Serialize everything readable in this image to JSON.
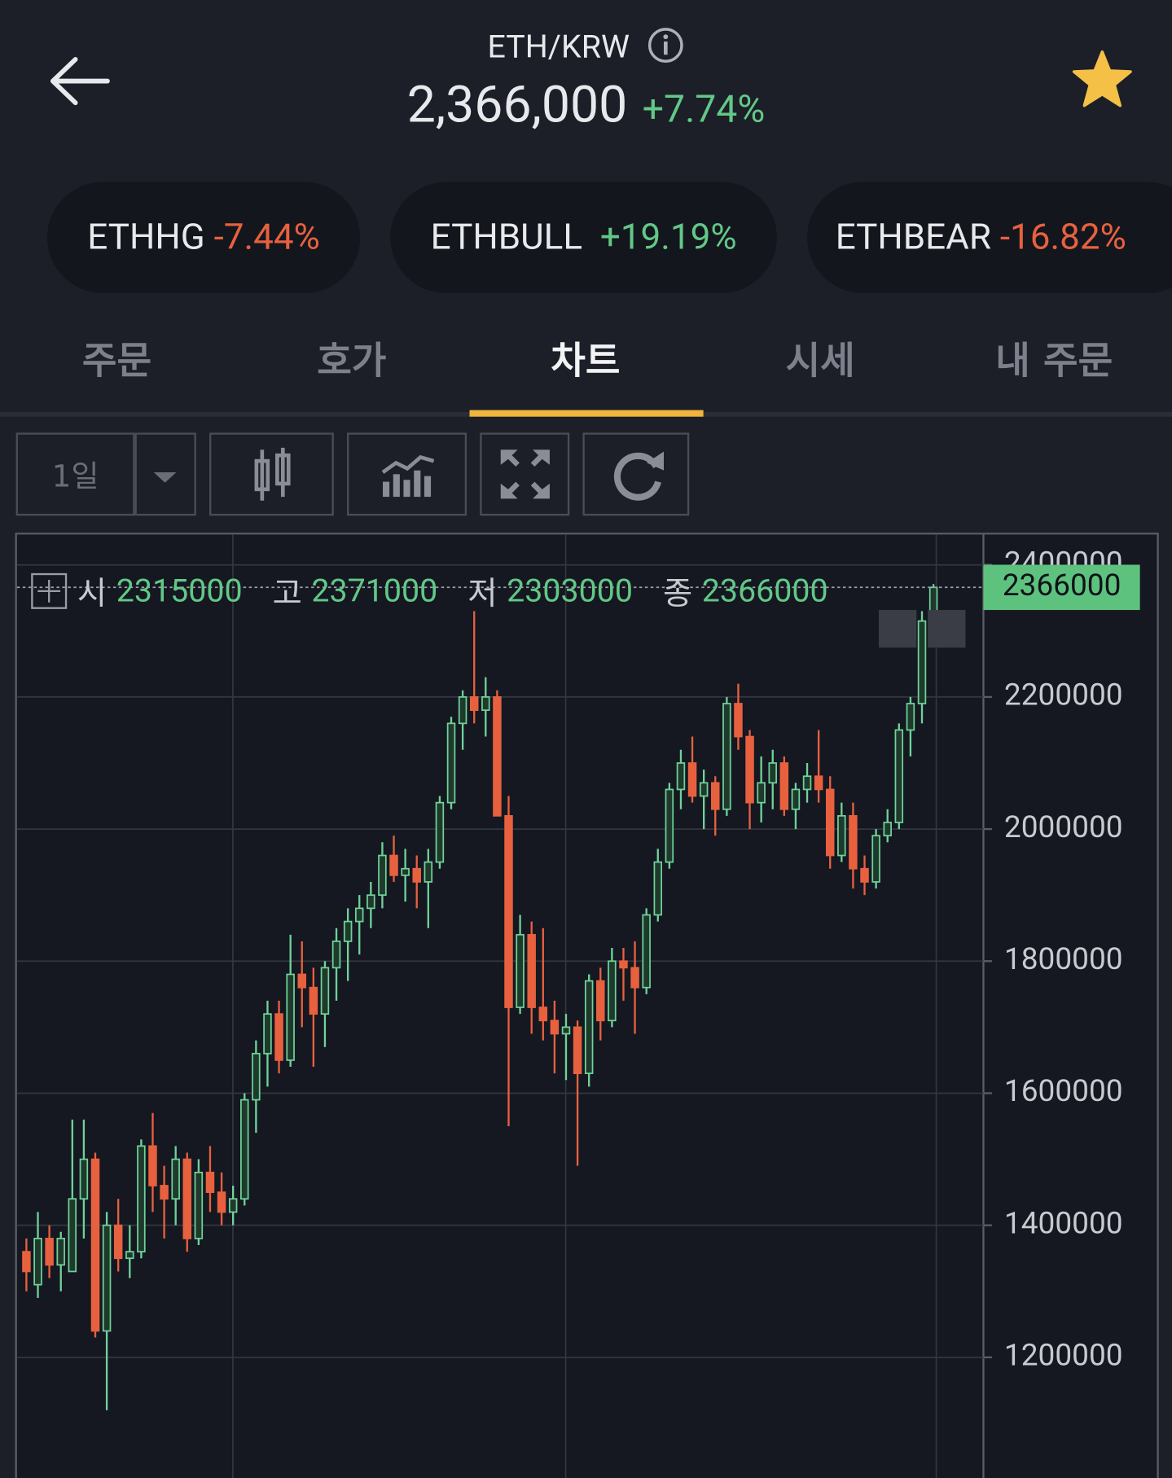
{
  "header": {
    "pair": "ETH/KRW",
    "price": "2,366,000",
    "change": "+7.74%"
  },
  "pills": [
    {
      "name": "ETHHG",
      "change": "-7.44%"
    },
    {
      "name": "ETHBULL",
      "change": "+19.19%"
    },
    {
      "name": "ETHBEAR",
      "change": "-16.82%"
    }
  ],
  "tabs": [
    "주문",
    "호가",
    "차트",
    "시세",
    "내 주문"
  ],
  "toolbar": {
    "interval": "1일"
  },
  "ohlc_labels": [
    "시",
    "고",
    "저",
    "종"
  ],
  "chart_data": {
    "type": "candlestick",
    "up_color": "#6fd39a",
    "down_color": "#e8613f",
    "grid": true,
    "ylim": [
      1017000,
      2446000
    ],
    "yticks": [
      1200000,
      1400000,
      1600000,
      1800000,
      2000000,
      2200000,
      2400000
    ],
    "candles": [
      [
        1360000,
        1380000,
        1300000,
        1330000
      ],
      [
        1310000,
        1420000,
        1290000,
        1380000
      ],
      [
        1380000,
        1400000,
        1320000,
        1340000
      ],
      [
        1340000,
        1390000,
        1300000,
        1380000
      ],
      [
        1330000,
        1560000,
        1330000,
        1440000
      ],
      [
        1440000,
        1560000,
        1380000,
        1500000
      ],
      [
        1500000,
        1510000,
        1230000,
        1240000
      ],
      [
        1240000,
        1420000,
        1120000,
        1400000
      ],
      [
        1400000,
        1440000,
        1330000,
        1350000
      ],
      [
        1350000,
        1400000,
        1320000,
        1360000
      ],
      [
        1360000,
        1530000,
        1350000,
        1520000
      ],
      [
        1520000,
        1570000,
        1420000,
        1460000
      ],
      [
        1460000,
        1490000,
        1380000,
        1440000
      ],
      [
        1440000,
        1520000,
        1400000,
        1500000
      ],
      [
        1500000,
        1510000,
        1360000,
        1380000
      ],
      [
        1380000,
        1500000,
        1370000,
        1480000
      ],
      [
        1480000,
        1520000,
        1420000,
        1450000
      ],
      [
        1450000,
        1480000,
        1400000,
        1420000
      ],
      [
        1420000,
        1460000,
        1400000,
        1440000
      ],
      [
        1440000,
        1600000,
        1430000,
        1590000
      ],
      [
        1590000,
        1680000,
        1540000,
        1660000
      ],
      [
        1660000,
        1740000,
        1610000,
        1720000
      ],
      [
        1720000,
        1740000,
        1630000,
        1650000
      ],
      [
        1650000,
        1840000,
        1640000,
        1780000
      ],
      [
        1780000,
        1830000,
        1700000,
        1760000
      ],
      [
        1760000,
        1790000,
        1640000,
        1720000
      ],
      [
        1720000,
        1800000,
        1670000,
        1790000
      ],
      [
        1790000,
        1850000,
        1740000,
        1830000
      ],
      [
        1830000,
        1880000,
        1770000,
        1860000
      ],
      [
        1860000,
        1900000,
        1810000,
        1880000
      ],
      [
        1880000,
        1920000,
        1850000,
        1900000
      ],
      [
        1900000,
        1980000,
        1880000,
        1960000
      ],
      [
        1960000,
        1990000,
        1920000,
        1930000
      ],
      [
        1930000,
        1970000,
        1890000,
        1940000
      ],
      [
        1940000,
        1960000,
        1880000,
        1920000
      ],
      [
        1920000,
        1970000,
        1850000,
        1950000
      ],
      [
        1950000,
        2050000,
        1940000,
        2040000
      ],
      [
        2040000,
        2170000,
        2030000,
        2160000
      ],
      [
        2160000,
        2210000,
        2120000,
        2200000
      ],
      [
        2200000,
        2330000,
        2160000,
        2180000
      ],
      [
        2180000,
        2230000,
        2140000,
        2200000
      ],
      [
        2200000,
        2210000,
        2020000,
        2020000
      ],
      [
        2020000,
        2050000,
        1550000,
        1730000
      ],
      [
        1730000,
        1870000,
        1720000,
        1840000
      ],
      [
        1840000,
        1860000,
        1690000,
        1730000
      ],
      [
        1730000,
        1850000,
        1680000,
        1710000
      ],
      [
        1710000,
        1740000,
        1630000,
        1690000
      ],
      [
        1690000,
        1720000,
        1620000,
        1700000
      ],
      [
        1700000,
        1710000,
        1490000,
        1630000
      ],
      [
        1630000,
        1780000,
        1610000,
        1770000
      ],
      [
        1770000,
        1790000,
        1680000,
        1710000
      ],
      [
        1710000,
        1820000,
        1700000,
        1800000
      ],
      [
        1800000,
        1820000,
        1740000,
        1790000
      ],
      [
        1790000,
        1830000,
        1690000,
        1760000
      ],
      [
        1760000,
        1880000,
        1750000,
        1870000
      ],
      [
        1870000,
        1970000,
        1860000,
        1950000
      ],
      [
        1950000,
        2070000,
        1940000,
        2060000
      ],
      [
        2060000,
        2120000,
        2030000,
        2100000
      ],
      [
        2100000,
        2140000,
        2040000,
        2050000
      ],
      [
        2050000,
        2090000,
        2000000,
        2070000
      ],
      [
        2070000,
        2080000,
        1990000,
        2030000
      ],
      [
        2030000,
        2200000,
        2020000,
        2190000
      ],
      [
        2190000,
        2220000,
        2120000,
        2140000
      ],
      [
        2140000,
        2150000,
        2000000,
        2040000
      ],
      [
        2040000,
        2110000,
        2010000,
        2070000
      ],
      [
        2070000,
        2120000,
        2030000,
        2100000
      ],
      [
        2100000,
        2110000,
        2020000,
        2030000
      ],
      [
        2030000,
        2070000,
        2000000,
        2060000
      ],
      [
        2060000,
        2100000,
        2040000,
        2080000
      ],
      [
        2080000,
        2150000,
        2040000,
        2060000
      ],
      [
        2060000,
        2080000,
        1940000,
        1960000
      ],
      [
        1960000,
        2040000,
        1950000,
        2020000
      ],
      [
        2020000,
        2040000,
        1910000,
        1940000
      ],
      [
        1940000,
        1960000,
        1900000,
        1920000
      ],
      [
        1920000,
        2000000,
        1910000,
        1990000
      ],
      [
        1990000,
        2030000,
        1980000,
        2010000
      ],
      [
        2010000,
        2160000,
        2000000,
        2150000
      ],
      [
        2150000,
        2200000,
        2110000,
        2190000
      ],
      [
        2190000,
        2330000,
        2160000,
        2315000
      ],
      [
        2315000,
        2371000,
        2303000,
        2366000
      ]
    ]
  }
}
